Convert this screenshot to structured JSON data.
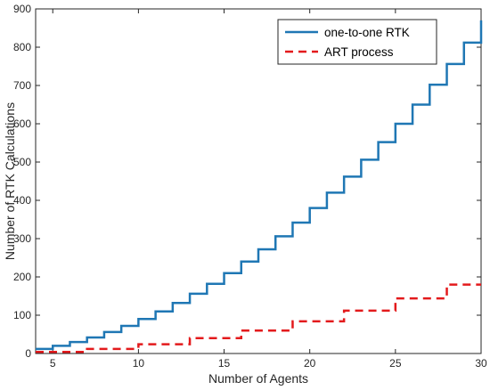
{
  "chart_data": {
    "type": "line",
    "title": "",
    "xlabel": "Number of Agents",
    "ylabel": "Number of RTK Calculations",
    "xlim": [
      4,
      30
    ],
    "ylim": [
      0,
      900
    ],
    "xticks": [
      5,
      10,
      15,
      20,
      25,
      30
    ],
    "yticks": [
      0,
      100,
      200,
      300,
      400,
      500,
      600,
      700,
      800,
      900
    ],
    "grid": false,
    "legend_position": "top-right",
    "step": "post",
    "x": [
      4,
      5,
      6,
      7,
      8,
      9,
      10,
      11,
      12,
      13,
      14,
      15,
      16,
      17,
      18,
      19,
      20,
      21,
      22,
      23,
      24,
      25,
      26,
      27,
      28,
      29,
      30
    ],
    "series": [
      {
        "name": "one-to-one RTK",
        "color": "#1f77b4",
        "style": "solid",
        "values": [
          12,
          20,
          30,
          42,
          56,
          72,
          90,
          110,
          132,
          156,
          182,
          210,
          240,
          272,
          306,
          342,
          380,
          420,
          462,
          506,
          552,
          600,
          650,
          702,
          756,
          812,
          870
        ]
      },
      {
        "name": "ART process",
        "color": "#e31a1c",
        "style": "dashed",
        "values": [
          4,
          4,
          4,
          12,
          12,
          12,
          24,
          24,
          24,
          40,
          40,
          40,
          60,
          60,
          60,
          84,
          84,
          84,
          112,
          112,
          112,
          144,
          144,
          144,
          180,
          180,
          180
        ]
      }
    ]
  }
}
